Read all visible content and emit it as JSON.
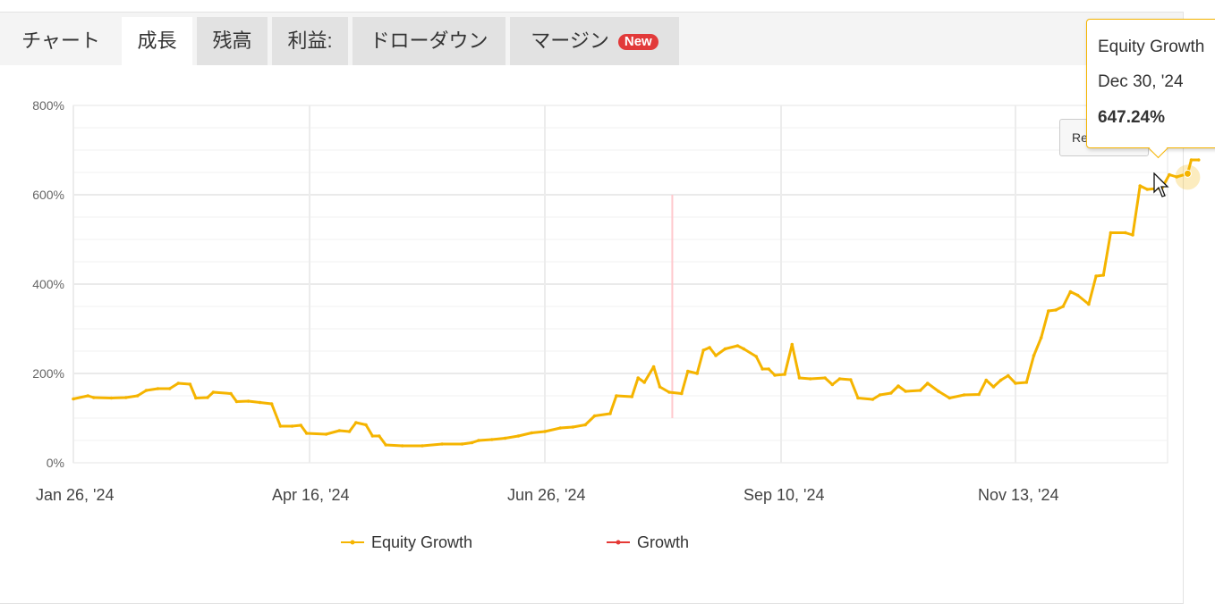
{
  "tabs": [
    {
      "label": "チャート",
      "state": "plain"
    },
    {
      "label": "成長",
      "state": "active"
    },
    {
      "label": "残高",
      "state": "normal"
    },
    {
      "label": "利益:",
      "state": "normal"
    },
    {
      "label": "ドローダウン",
      "state": "normal"
    },
    {
      "label": "マージン",
      "state": "normal",
      "badge": "New"
    }
  ],
  "reset_button": {
    "label": "Reset zoom"
  },
  "tooltip": {
    "series": "Equity Growth",
    "date": "Dec 30, '24",
    "value": "647.24%"
  },
  "colors": {
    "equity": "#f5b400",
    "growth": "#e53935",
    "grid": "#e6e6e6",
    "tab_badge": "#e23a3a"
  },
  "chart_data": {
    "type": "line",
    "ylim": [
      0,
      800
    ],
    "y_ticks": [
      "0%",
      "200%",
      "400%",
      "600%",
      "800%"
    ],
    "x_ticks": [
      "Jan 26, '24",
      "Apr 16, '24",
      "Jun 26, '24",
      "Sep 10, '24",
      "Nov 13, '24"
    ],
    "legend": [
      "Equity Growth",
      "Growth"
    ],
    "legend_position": "bottom",
    "grid": true,
    "series": [
      {
        "name": "Equity Growth",
        "points": [
          [
            "2024-01-26",
            143
          ],
          [
            "2024-01-31",
            150
          ],
          [
            "2024-02-02",
            146
          ],
          [
            "2024-02-08",
            145
          ],
          [
            "2024-02-13",
            146
          ],
          [
            "2024-02-17",
            150
          ],
          [
            "2024-02-20",
            162
          ],
          [
            "2024-02-24",
            166
          ],
          [
            "2024-02-28",
            166
          ],
          [
            "2024-03-02",
            178
          ],
          [
            "2024-03-06",
            176
          ],
          [
            "2024-03-08",
            145
          ],
          [
            "2024-03-12",
            146
          ],
          [
            "2024-03-14",
            158
          ],
          [
            "2024-03-20",
            155
          ],
          [
            "2024-03-22",
            137
          ],
          [
            "2024-03-26",
            138
          ],
          [
            "2024-03-30",
            135
          ],
          [
            "2024-04-03",
            132
          ],
          [
            "2024-04-06",
            82
          ],
          [
            "2024-04-10",
            82
          ],
          [
            "2024-04-13",
            84
          ],
          [
            "2024-04-15",
            66
          ],
          [
            "2024-04-21",
            64
          ],
          [
            "2024-04-25",
            72
          ],
          [
            "2024-04-28",
            70
          ],
          [
            "2024-04-30",
            90
          ],
          [
            "2024-05-03",
            85
          ],
          [
            "2024-05-05",
            60
          ],
          [
            "2024-05-07",
            60
          ],
          [
            "2024-05-09",
            40
          ],
          [
            "2024-05-14",
            38
          ],
          [
            "2024-05-20",
            38
          ],
          [
            "2024-05-26",
            42
          ],
          [
            "2024-06-01",
            42
          ],
          [
            "2024-06-04",
            45
          ],
          [
            "2024-06-06",
            50
          ],
          [
            "2024-06-10",
            52
          ],
          [
            "2024-06-14",
            55
          ],
          [
            "2024-06-18",
            60
          ],
          [
            "2024-06-22",
            67
          ],
          [
            "2024-06-26",
            70
          ],
          [
            "2024-07-01",
            78
          ],
          [
            "2024-07-05",
            80
          ],
          [
            "2024-07-09",
            85
          ],
          [
            "2024-07-12",
            105
          ],
          [
            "2024-07-17",
            110
          ],
          [
            "2024-07-19",
            150
          ],
          [
            "2024-07-24",
            148
          ],
          [
            "2024-07-26",
            190
          ],
          [
            "2024-07-28",
            180
          ],
          [
            "2024-07-31",
            215
          ],
          [
            "2024-08-02",
            170
          ],
          [
            "2024-08-05",
            158
          ],
          [
            "2024-08-09",
            155
          ],
          [
            "2024-08-11",
            205
          ],
          [
            "2024-08-14",
            200
          ],
          [
            "2024-08-16",
            252
          ],
          [
            "2024-08-18",
            258
          ],
          [
            "2024-08-20",
            240
          ],
          [
            "2024-08-23",
            255
          ],
          [
            "2024-08-27",
            262
          ],
          [
            "2024-08-29",
            255
          ],
          [
            "2024-09-02",
            238
          ],
          [
            "2024-09-04",
            210
          ],
          [
            "2024-09-06",
            210
          ],
          [
            "2024-09-08",
            196
          ],
          [
            "2024-09-11",
            198
          ],
          [
            "2024-09-13",
            265
          ],
          [
            "2024-09-15",
            190
          ],
          [
            "2024-09-18",
            188
          ],
          [
            "2024-09-22",
            190
          ],
          [
            "2024-09-24",
            175
          ],
          [
            "2024-09-26",
            188
          ],
          [
            "2024-09-29",
            186
          ],
          [
            "2024-10-01",
            145
          ],
          [
            "2024-10-05",
            142
          ],
          [
            "2024-10-07",
            152
          ],
          [
            "2024-10-10",
            156
          ],
          [
            "2024-10-12",
            172
          ],
          [
            "2024-10-14",
            160
          ],
          [
            "2024-10-18",
            162
          ],
          [
            "2024-10-20",
            178
          ],
          [
            "2024-10-23",
            160
          ],
          [
            "2024-10-26",
            145
          ],
          [
            "2024-10-30",
            152
          ],
          [
            "2024-11-03",
            153
          ],
          [
            "2024-11-05",
            185
          ],
          [
            "2024-11-07",
            170
          ],
          [
            "2024-11-09",
            185
          ],
          [
            "2024-11-11",
            195
          ],
          [
            "2024-11-13",
            178
          ],
          [
            "2024-11-16",
            180
          ],
          [
            "2024-11-18",
            240
          ],
          [
            "2024-11-20",
            280
          ],
          [
            "2024-11-22",
            340
          ],
          [
            "2024-11-24",
            342
          ],
          [
            "2024-11-26",
            350
          ],
          [
            "2024-11-28",
            383
          ],
          [
            "2024-11-30",
            375
          ],
          [
            "2024-12-03",
            355
          ],
          [
            "2024-12-05",
            418
          ],
          [
            "2024-12-07",
            420
          ],
          [
            "2024-12-09",
            515
          ],
          [
            "2024-12-13",
            515
          ],
          [
            "2024-12-15",
            510
          ],
          [
            "2024-12-17",
            620
          ],
          [
            "2024-12-19",
            612
          ],
          [
            "2024-12-23",
            615
          ],
          [
            "2024-12-25",
            645
          ],
          [
            "2024-12-27",
            640
          ],
          [
            "2024-12-30",
            647.24
          ],
          [
            "2024-12-31",
            678
          ],
          [
            "2025-01-02",
            678
          ]
        ]
      },
      {
        "name": "Growth",
        "points": [
          [
            "2024-08-06",
            600
          ],
          [
            "2024-08-06",
            100
          ]
        ]
      }
    ]
  }
}
